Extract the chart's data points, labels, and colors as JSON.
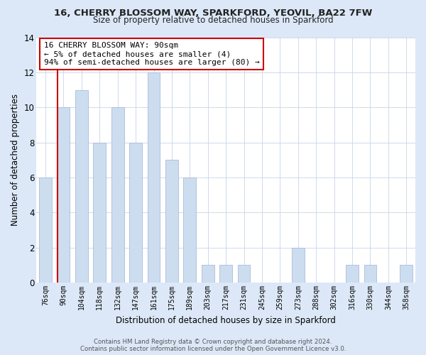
{
  "title1": "16, CHERRY BLOSSOM WAY, SPARKFORD, YEOVIL, BA22 7FW",
  "title2": "Size of property relative to detached houses in Sparkford",
  "xlabel": "Distribution of detached houses by size in Sparkford",
  "ylabel": "Number of detached properties",
  "categories": [
    "76sqm",
    "90sqm",
    "104sqm",
    "118sqm",
    "132sqm",
    "147sqm",
    "161sqm",
    "175sqm",
    "189sqm",
    "203sqm",
    "217sqm",
    "231sqm",
    "245sqm",
    "259sqm",
    "273sqm",
    "288sqm",
    "302sqm",
    "316sqm",
    "330sqm",
    "344sqm",
    "358sqm"
  ],
  "values": [
    6,
    10,
    11,
    8,
    10,
    8,
    12,
    7,
    6,
    1,
    1,
    1,
    0,
    0,
    2,
    0,
    0,
    1,
    1,
    0,
    1
  ],
  "bar_color": "#ccddf0",
  "bar_edge_color": "#aabbd8",
  "subject_index": 1,
  "subject_line_color": "#cc0000",
  "annotation_text": "16 CHERRY BLOSSOM WAY: 90sqm\n← 5% of detached houses are smaller (4)\n94% of semi-detached houses are larger (80) →",
  "annotation_box_facecolor": "#ffffff",
  "annotation_box_edgecolor": "#cc0000",
  "ylim": [
    0,
    14
  ],
  "yticks": [
    0,
    2,
    4,
    6,
    8,
    10,
    12,
    14
  ],
  "footer": "Contains HM Land Registry data © Crown copyright and database right 2024.\nContains public sector information licensed under the Open Government Licence v3.0.",
  "fig_facecolor": "#dce8f8",
  "axes_facecolor": "#ffffff",
  "grid_color": "#c8d4e8",
  "title1_fontsize": 9.5,
  "title2_fontsize": 8.5
}
